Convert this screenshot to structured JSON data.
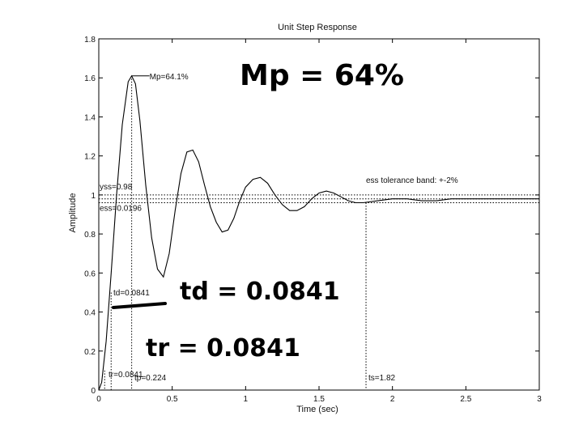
{
  "chart_data": {
    "type": "line",
    "title": "Unit Step Response",
    "xlabel": "Time (sec)",
    "ylabel": "Amplitude",
    "xlim": [
      0,
      3
    ],
    "ylim": [
      0,
      1.8
    ],
    "x_ticks": [
      "0",
      "0.5",
      "1",
      "1.5",
      "2",
      "2.5",
      "3"
    ],
    "y_ticks": [
      "0",
      "0.2",
      "0.4",
      "0.6",
      "0.8",
      "1",
      "1.2",
      "1.4",
      "1.6",
      "1.8"
    ],
    "grid": false,
    "series": [
      {
        "x": [
          0,
          0.02,
          0.05,
          0.0841,
          0.12,
          0.16,
          0.2,
          0.224,
          0.25,
          0.28,
          0.32,
          0.36,
          0.4,
          0.44,
          0.48,
          0.52,
          0.56,
          0.6,
          0.64,
          0.68,
          0.72,
          0.76,
          0.8,
          0.84,
          0.88,
          0.92,
          0.96,
          1.0,
          1.05,
          1.1,
          1.15,
          1.2,
          1.25,
          1.3,
          1.35,
          1.4,
          1.45,
          1.5,
          1.55,
          1.6,
          1.65,
          1.7,
          1.75,
          1.8,
          1.9,
          2.0,
          2.1,
          2.2,
          2.3,
          2.4,
          2.5,
          2.6,
          2.7,
          2.8,
          2.9,
          3.0
        ],
        "y": [
          0,
          0.04,
          0.25,
          0.6,
          0.99,
          1.36,
          1.58,
          1.61,
          1.57,
          1.38,
          1.05,
          0.78,
          0.62,
          0.58,
          0.7,
          0.92,
          1.11,
          1.22,
          1.23,
          1.17,
          1.05,
          0.94,
          0.86,
          0.81,
          0.82,
          0.88,
          0.97,
          1.04,
          1.08,
          1.09,
          1.06,
          1.0,
          0.95,
          0.92,
          0.92,
          0.94,
          0.98,
          1.01,
          1.02,
          1.01,
          0.99,
          0.97,
          0.96,
          0.96,
          0.97,
          0.98,
          0.98,
          0.97,
          0.97,
          0.98,
          0.98,
          0.98,
          0.98,
          0.98,
          0.98,
          0.98
        ]
      }
    ],
    "annotations": {
      "mp": {
        "text": "Mp=64.1%",
        "x": 0.224,
        "y": 1.61
      },
      "yss": {
        "text": "yss=0.98",
        "value": 0.98
      },
      "ess": {
        "text": "ess=0.0196"
      },
      "band": {
        "text": "ess tolerance band: +-2%",
        "upper": 1.0,
        "lower": 0.96
      },
      "td": {
        "text": "td=0.0841",
        "x": 0.0841
      },
      "tr": {
        "text": "tr=0.0841",
        "x": 0.0841
      },
      "tp": {
        "text": "tp=0.224",
        "x": 0.224
      },
      "ts": {
        "text": "ts=1.82",
        "x": 1.82
      }
    },
    "handwritten": {
      "mp": "Mp = 64%",
      "td": "td = 0.0841",
      "tr": "tr = 0.0841"
    }
  }
}
